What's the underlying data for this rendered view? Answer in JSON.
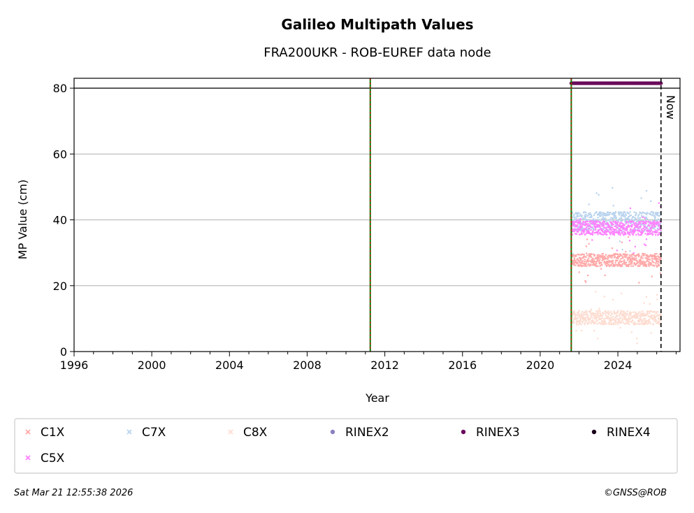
{
  "chart_data": {
    "type": "scatter",
    "title": "Galileo Multipath Values",
    "subtitle": "FRA200UKR - ROB-EUREF data node",
    "xlabel": "Year",
    "ylabel": "MP Value (cm)",
    "xlim": [
      1996,
      2027.2
    ],
    "ylim": [
      0,
      83
    ],
    "x_ticks": [
      "1996",
      "2000",
      "2004",
      "2008",
      "2012",
      "2016",
      "2020",
      "2024"
    ],
    "y_ticks": [
      "0",
      "20",
      "40",
      "60",
      "80"
    ],
    "grid": "y",
    "hline": 80,
    "event_lines": [
      2011.25,
      2021.6
    ],
    "now_line": {
      "x": 2026.22,
      "label": "Now"
    },
    "start": 2021.6,
    "end": 2026.22,
    "series": [
      {
        "name": "C1X",
        "color": "#ffa8a8",
        "marker": "x",
        "mean": 27.8,
        "range": [
          25.5,
          30
        ]
      },
      {
        "name": "C7X",
        "color": "#b8d3ee",
        "marker": "x",
        "mean": 39.5,
        "range": [
          36,
          43
        ]
      },
      {
        "name": "C8X",
        "color": "#fddcd0",
        "marker": "x",
        "mean": 10.3,
        "range": [
          8,
          13
        ]
      },
      {
        "name": "RINEX2",
        "color": "#8c7fc0",
        "marker": "dot"
      },
      {
        "name": "RINEX3",
        "color": "#6a0a5a",
        "marker": "dot",
        "level": 81.5
      },
      {
        "name": "RINEX4",
        "color": "#1a001a",
        "marker": "dot"
      },
      {
        "name": "C5X",
        "color": "#ff80ff",
        "marker": "x",
        "mean": 37.5,
        "range": [
          35,
          40
        ]
      }
    ]
  },
  "footer": {
    "timestamp": "Sat Mar 21 12:55:38 2026",
    "copyright": "©GNSS@ROB"
  }
}
